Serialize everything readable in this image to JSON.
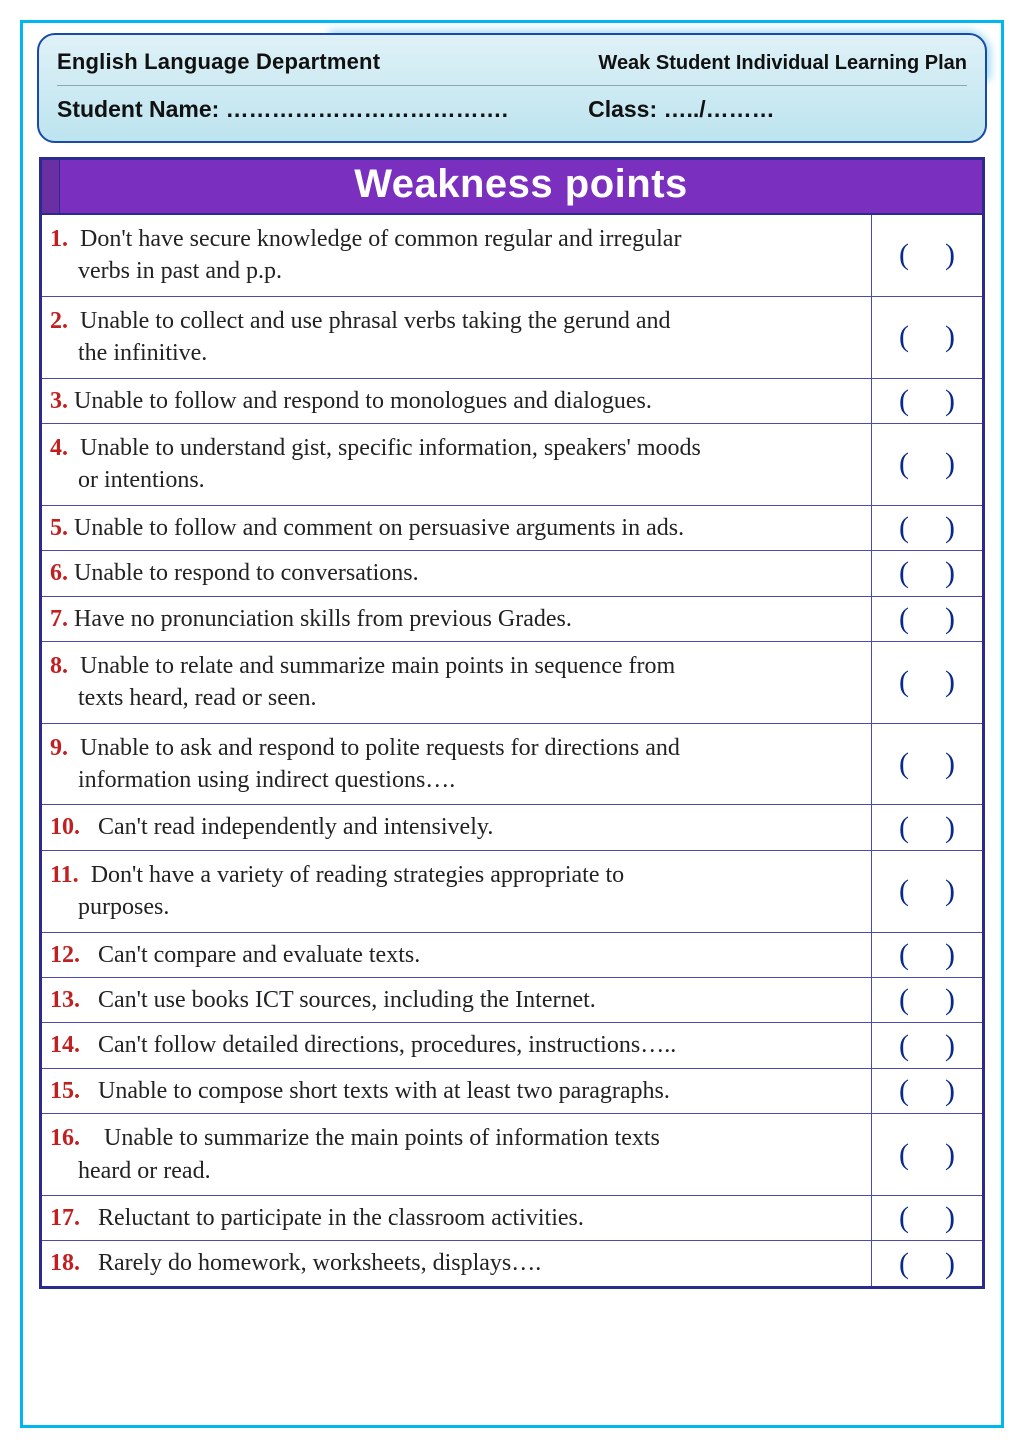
{
  "header": {
    "department": "English Language Department",
    "plan_title": "Weak Student Individual Learning Plan",
    "student_label": "Student Name: ……………………………….",
    "class_label": "Class: …../………"
  },
  "table": {
    "title": "Weakness points",
    "title_bg": "#7a2fbf",
    "title_color": "#ffffff",
    "border_color": "#2a2a8f",
    "number_color": "#c02020",
    "paren_color": "#0a2a8a",
    "checkbox_left": "(",
    "checkbox_right": ")",
    "rows": [
      {
        "n": "1.",
        "text_l1": "Don't have secure knowledge of common regular and irregular",
        "text_l2": "verbs in past and p.p."
      },
      {
        "n": "2.",
        "text_l1": "Unable to collect and use phrasal verbs taking the gerund and",
        "text_l2": "the infinitive."
      },
      {
        "n": "3.",
        "text_l1": "Unable to follow and respond to monologues and dialogues."
      },
      {
        "n": "4.",
        "text_l1": "Unable to understand gist, specific information, speakers' moods",
        "text_l2": "or intentions."
      },
      {
        "n": "5.",
        "text_l1": "Unable to follow and comment on persuasive arguments in ads."
      },
      {
        "n": "6.",
        "text_l1": "Unable to respond to conversations."
      },
      {
        "n": "7.",
        "text_l1": "Have no pronunciation skills from previous Grades."
      },
      {
        "n": "8.",
        "text_l1": "Unable to relate and summarize main points in sequence from",
        "text_l2": "texts heard, read or seen."
      },
      {
        "n": "9.",
        "text_l1": "Unable to ask and respond to polite requests for directions and",
        "text_l2": "information using indirect questions…."
      },
      {
        "n": "10.",
        "text_l1": "Can't read independently and intensively.",
        "wide": true
      },
      {
        "n": "11.",
        "text_l1": "Don't have a variety of reading strategies appropriate to",
        "text_l2": "purposes."
      },
      {
        "n": "12.",
        "text_l1": "Can't compare and evaluate texts.",
        "wide": true
      },
      {
        "n": "13.",
        "text_l1": "Can't use books ICT sources, including the Internet.",
        "wide": true
      },
      {
        "n": "14.",
        "text_l1": "Can't follow detailed directions, procedures, instructions…..",
        "wide": true
      },
      {
        "n": "15.",
        "text_l1": "Unable to compose short texts with at least two paragraphs.",
        "wide": true
      },
      {
        "n": "16.",
        "text_l1": "Unable to summarize the main points of information texts",
        "text_l2": "heard or read.",
        "wide": true
      },
      {
        "n": "17.",
        "text_l1": "Reluctant to participate in the classroom activities.",
        "wide": true
      },
      {
        "n": "18.",
        "text_l1": "Rarely do homework, worksheets, displays….",
        "wide": true
      }
    ]
  },
  "page": {
    "outer_border_color": "#00b8f0",
    "header_bg_top": "#dff1f7",
    "header_bg_bottom": "#bde4ef",
    "header_border": "#1a4aa8"
  }
}
